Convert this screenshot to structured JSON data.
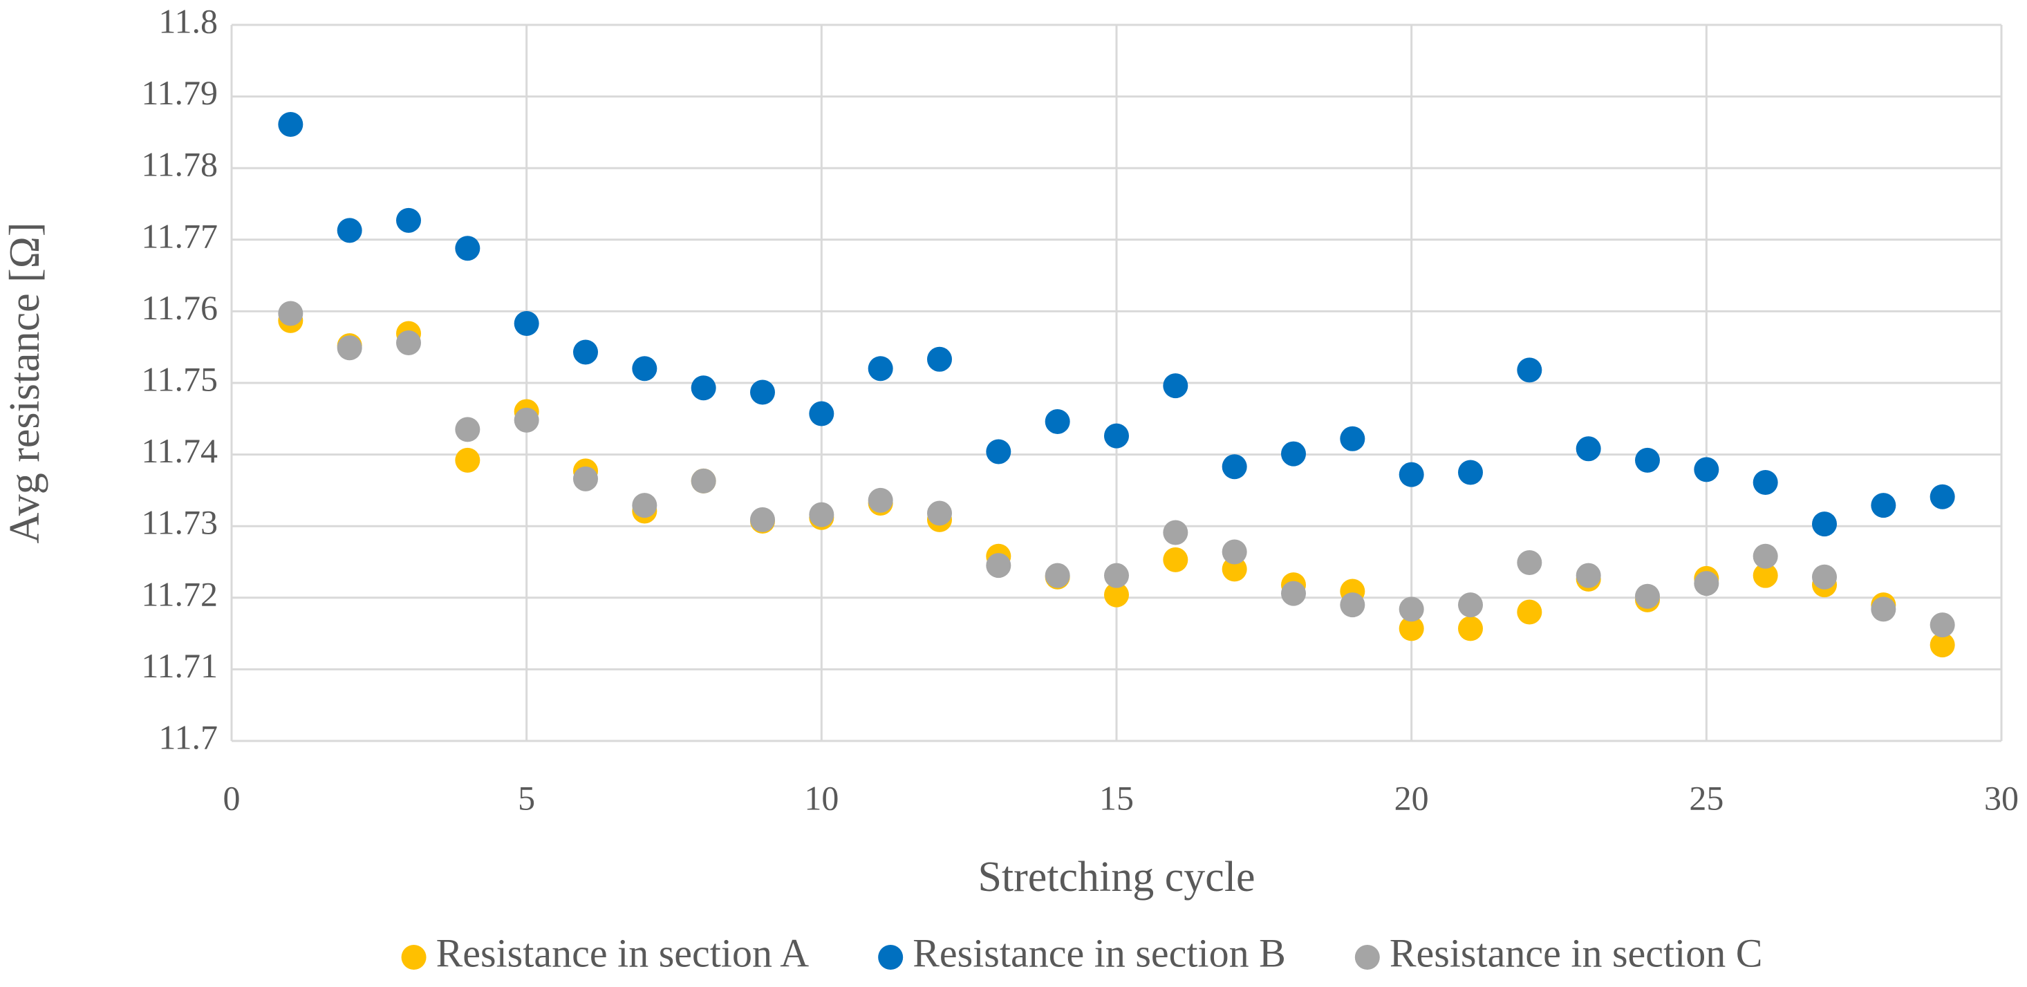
{
  "chart_data": {
    "type": "scatter",
    "x_label": "Stretching cycle",
    "y_label": "Avg resistance [Ω]",
    "x": [
      1,
      2,
      3,
      4,
      5,
      6,
      7,
      8,
      9,
      10,
      11,
      12,
      13,
      14,
      15,
      16,
      17,
      18,
      19,
      20,
      21,
      22,
      23,
      24,
      25,
      26,
      27,
      28,
      29
    ],
    "series": [
      {
        "name": "Resistance in section A",
        "color": "#ffc000",
        "values": [
          11.7587,
          11.7552,
          11.7569,
          11.7392,
          11.746,
          11.7377,
          11.7321,
          11.7363,
          11.7307,
          11.7312,
          11.7332,
          11.7309,
          11.7258,
          11.7229,
          11.7204,
          11.7253,
          11.724,
          11.7218,
          11.7209,
          11.7157,
          11.7157,
          11.718,
          11.7226,
          11.7197,
          11.7227,
          11.7231,
          11.7218,
          11.719,
          11.7134
        ]
      },
      {
        "name": "Resistance in section B",
        "color": "#0070c0",
        "values": [
          11.7861,
          11.7713,
          11.7727,
          11.7688,
          11.7583,
          11.7543,
          11.752,
          11.7493,
          11.7487,
          11.7457,
          11.752,
          11.7533,
          11.7404,
          11.7446,
          11.7426,
          11.7496,
          11.7383,
          11.7401,
          11.7422,
          11.7372,
          11.7375,
          11.7518,
          11.7408,
          11.7392,
          11.7379,
          11.7361,
          11.7303,
          11.7329,
          11.7341
        ]
      },
      {
        "name": "Resistance in section C",
        "color": "#a5a5a5",
        "values": [
          11.7597,
          11.7549,
          11.7556,
          11.7435,
          11.7448,
          11.7366,
          11.7329,
          11.7363,
          11.7309,
          11.7316,
          11.7336,
          11.7318,
          11.7245,
          11.7231,
          11.7231,
          11.7291,
          11.7264,
          11.7206,
          11.719,
          11.7184,
          11.719,
          11.7249,
          11.7231,
          11.7202,
          11.722,
          11.7258,
          11.7229,
          11.7184,
          11.7162
        ]
      }
    ],
    "xlim": [
      0,
      30
    ],
    "xticks": [
      0,
      5,
      10,
      15,
      20,
      25,
      30
    ],
    "ylim": [
      11.7,
      11.8
    ],
    "yticks": [
      11.7,
      11.71,
      11.72,
      11.73,
      11.74,
      11.75,
      11.76,
      11.77,
      11.78,
      11.79,
      11.8
    ],
    "grid": true,
    "legend": "bottom"
  }
}
